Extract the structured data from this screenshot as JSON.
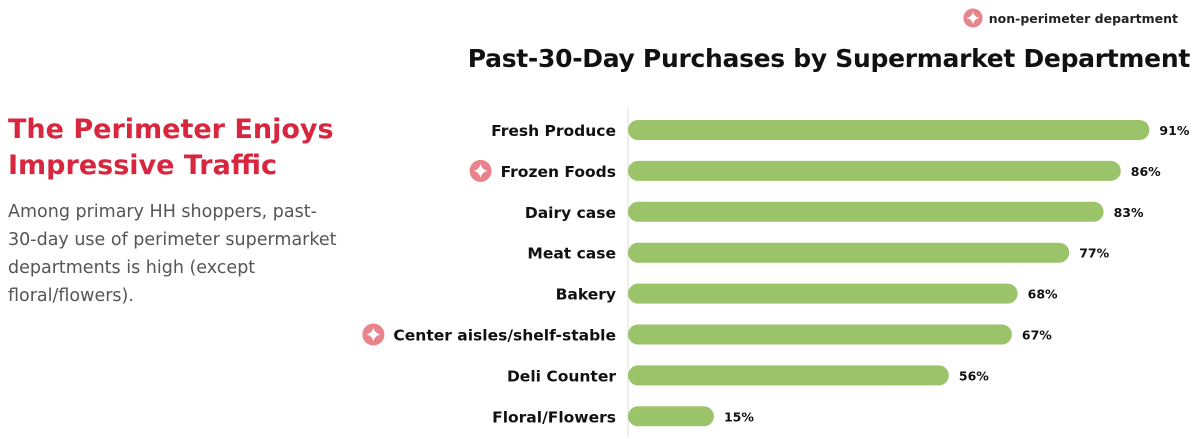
{
  "panel": {
    "headline": "The Perimeter Enjoys Impressive Traffic",
    "body": "Among primary HH shoppers, past-30-day use of perimeter supermarket departments is high (except floral/flowers)."
  },
  "legend": {
    "label": "non-perimeter department",
    "icon": "sparkle-badge-icon"
  },
  "colors": {
    "accent": "#d7263d",
    "bar": "#9bc46a",
    "badge": "#e9828a"
  },
  "chart_data": {
    "type": "bar",
    "orientation": "horizontal",
    "title": "Past-30-Day Purchases by Supermarket Department",
    "categories": [
      "Fresh Produce",
      "Frozen Foods",
      "Dairy case",
      "Meat case",
      "Bakery",
      "Center aisles/shelf-stable",
      "Deli Counter",
      "Floral/Flowers"
    ],
    "values": [
      91,
      86,
      83,
      77,
      68,
      67,
      56,
      15
    ],
    "value_labels": [
      "91%",
      "86%",
      "83%",
      "77%",
      "68%",
      "67%",
      "56%",
      "15%"
    ],
    "non_perimeter": [
      false,
      true,
      false,
      false,
      false,
      true,
      false,
      false
    ],
    "xlim": [
      0,
      100
    ],
    "grid": false,
    "legend_position": "top-right"
  }
}
